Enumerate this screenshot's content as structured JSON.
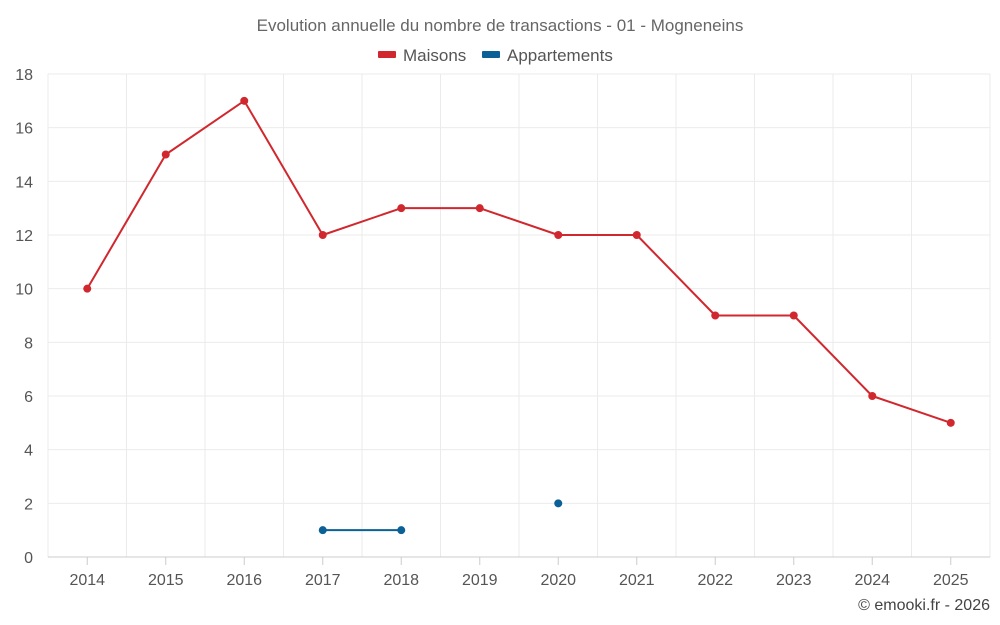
{
  "chart_data": {
    "type": "line",
    "title": "Evolution annuelle du nombre de transactions - 01 - Mogneneins",
    "categories": [
      "2014",
      "2015",
      "2016",
      "2017",
      "2018",
      "2019",
      "2020",
      "2021",
      "2022",
      "2023",
      "2024",
      "2025"
    ],
    "ylim": [
      0,
      18
    ],
    "yticks": [
      0,
      2,
      4,
      6,
      8,
      10,
      12,
      14,
      16,
      18
    ],
    "grid": true,
    "legend_position": "top-center",
    "series": [
      {
        "name": "Maisons",
        "color": "#d0282e",
        "values": [
          10,
          15,
          17,
          12,
          13,
          13,
          12,
          12,
          9,
          9,
          6,
          5
        ]
      },
      {
        "name": "Appartements",
        "color": "#0b6096",
        "values": [
          null,
          null,
          null,
          1,
          1,
          null,
          2,
          null,
          null,
          null,
          null,
          null
        ]
      }
    ],
    "credit": "© emooki.fr - 2026"
  }
}
